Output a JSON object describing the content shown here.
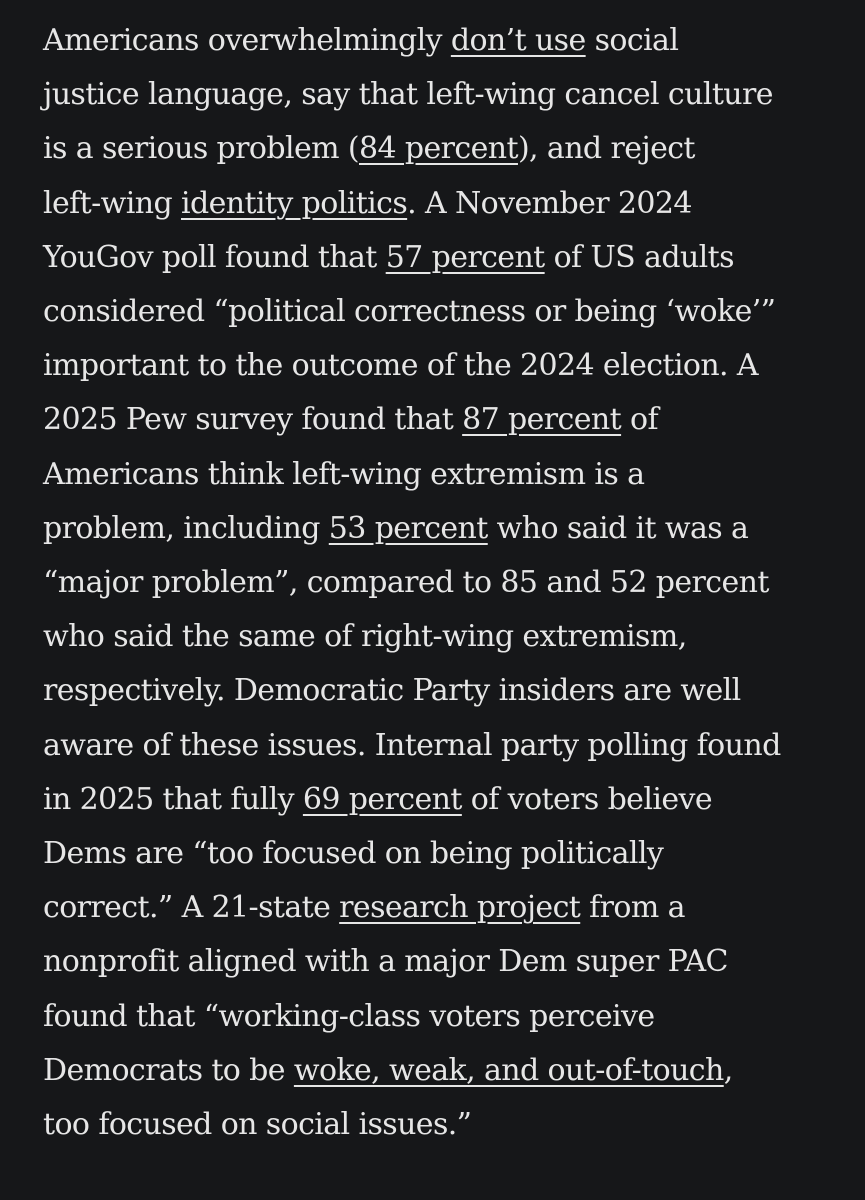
{
  "article": {
    "lines": [
      [
        {
          "t": "Americans overwhelmingly "
        },
        {
          "t": "don’t use",
          "link": true
        },
        {
          "t": " social"
        }
      ],
      [
        {
          "t": "justice language, say that left-wing cancel culture"
        }
      ],
      [
        {
          "t": "is a serious problem ("
        },
        {
          "t": "84 percent",
          "link": true
        },
        {
          "t": "), and reject"
        }
      ],
      [
        {
          "t": "left-wing "
        },
        {
          "t": "identity politics",
          "link": true
        },
        {
          "t": ". A November 2024"
        }
      ],
      [
        {
          "t": "YouGov poll found that "
        },
        {
          "t": "57 percent",
          "link": true
        },
        {
          "t": " of US adults"
        }
      ],
      [
        {
          "t": "considered “political correctness or being ‘woke’”"
        }
      ],
      [
        {
          "t": "important to the outcome of the 2024 election. A"
        }
      ],
      [
        {
          "t": "2025 Pew survey found that "
        },
        {
          "t": "87 percent",
          "link": true
        },
        {
          "t": " of"
        }
      ],
      [
        {
          "t": "Americans think left-wing extremism is a"
        }
      ],
      [
        {
          "t": "problem, including "
        },
        {
          "t": "53 percent",
          "link": true
        },
        {
          "t": " who said it was a"
        }
      ],
      [
        {
          "t": "“major problem”, compared to 85 and 52 percent"
        }
      ],
      [
        {
          "t": "who said the same of right-wing extremism,"
        }
      ],
      [
        {
          "t": "respectively. Democratic Party insiders are well"
        }
      ],
      [
        {
          "t": "aware of these issues. Internal party polling found"
        }
      ],
      [
        {
          "t": "in 2025 that fully "
        },
        {
          "t": "69 percent",
          "link": true
        },
        {
          "t": " of voters believe"
        }
      ],
      [
        {
          "t": "Dems are “too focused on being politically"
        }
      ],
      [
        {
          "t": "correct.” A 21-state "
        },
        {
          "t": "research project",
          "link": true
        },
        {
          "t": " from a"
        }
      ],
      [
        {
          "t": "nonprofit aligned with a major Dem super PAC"
        }
      ],
      [
        {
          "t": "found that “working-class voters perceive"
        }
      ],
      [
        {
          "t": "Democrats to be "
        },
        {
          "t": "woke, weak, and out-of-touch",
          "link": true
        },
        {
          "t": ","
        }
      ],
      [
        {
          "t": "too focused on social issues.”"
        }
      ]
    ]
  }
}
